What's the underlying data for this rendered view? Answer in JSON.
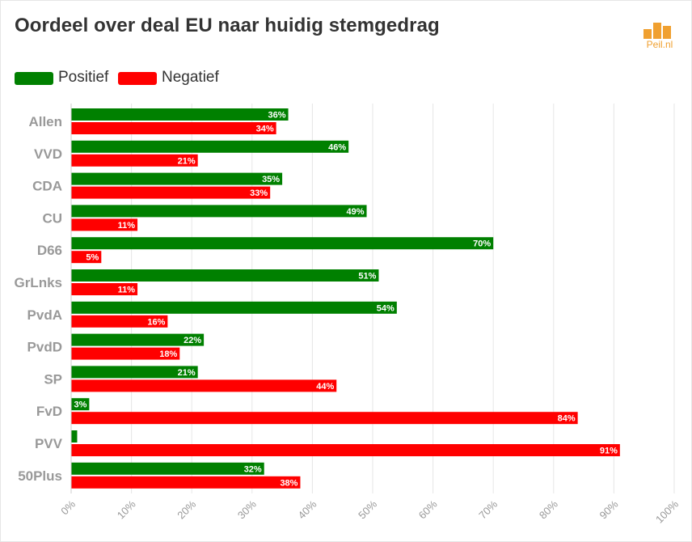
{
  "title": "Oordeel over deal EU naar huidig stemgedrag",
  "logo": {
    "text": "Peil.nl",
    "icon": "bar-chart-logo-icon"
  },
  "colors": {
    "positief": "#008000",
    "negatief": "#ff0000",
    "grid": "#e6e6e6",
    "axis_text": "#999999",
    "logo": "#f0a030"
  },
  "legend": [
    {
      "label": "Positief",
      "color": "#008000"
    },
    {
      "label": "Negatief",
      "color": "#ff0000"
    }
  ],
  "chart_data": {
    "type": "bar",
    "orientation": "horizontal",
    "title": "Oordeel over deal EU naar huidig stemgedrag",
    "categories": [
      "Allen",
      "VVD",
      "CDA",
      "CU",
      "D66",
      "GrLnks",
      "PvdA",
      "PvdD",
      "SP",
      "FvD",
      "PVV",
      "50Plus"
    ],
    "series": [
      {
        "name": "Positief",
        "values": [
          36,
          46,
          35,
          49,
          70,
          51,
          54,
          22,
          21,
          3,
          1,
          32
        ],
        "labels": [
          "36%",
          "46%",
          "35%",
          "49%",
          "70%",
          "51%",
          "54%",
          "22%",
          "21%",
          "3%",
          "",
          "32%"
        ]
      },
      {
        "name": "Negatief",
        "values": [
          34,
          21,
          33,
          11,
          5,
          11,
          16,
          18,
          44,
          84,
          91,
          38
        ],
        "labels": [
          "34%",
          "21%",
          "33%",
          "11%",
          "5%",
          "11%",
          "16%",
          "18%",
          "44%",
          "84%",
          "91%",
          "38%"
        ]
      }
    ],
    "xlim": [
      0,
      100
    ],
    "xticks": [
      "0%",
      "10%",
      "20%",
      "30%",
      "40%",
      "50%",
      "60%",
      "70%",
      "80%",
      "90%",
      "100%"
    ],
    "grid": true,
    "legend_position": "top-left"
  }
}
